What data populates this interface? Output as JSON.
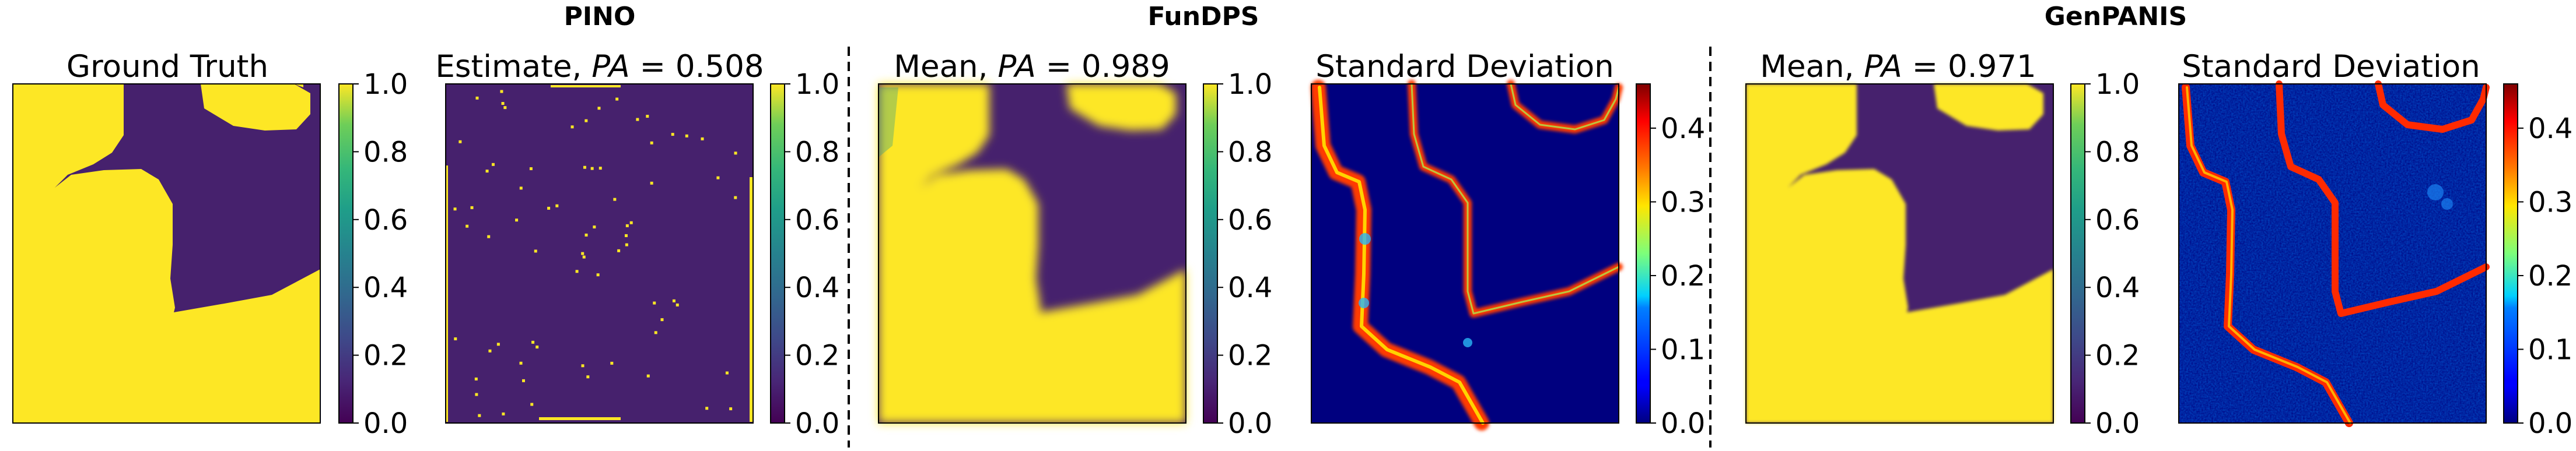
{
  "figure": {
    "group_titles": [
      "PINO",
      "FunDPS",
      "GenPANIS"
    ]
  },
  "colors": {
    "viridis_low": "#440154",
    "viridis_bg": "#46216d",
    "viridis_high": "#fde725",
    "jet_low": "#00007f",
    "jet_high": "#7f0000",
    "frame": "#000000",
    "divider": "#000000"
  },
  "chart_data": [
    {
      "type": "heatmap",
      "title": "Ground Truth",
      "colormap": "viridis",
      "colorbar": {
        "range": [
          0.0,
          1.0
        ],
        "ticks": [
          "0.0",
          "0.2",
          "0.4",
          "0.6",
          "0.8",
          "1.0"
        ]
      },
      "pattern": "binary field: yellow (1.0) channel snaking from top-center to bottom-left and spreading to bottom-right; purple (0.0) elsewhere"
    },
    {
      "type": "heatmap",
      "title": "Estimate, PA = 0.508",
      "title_main": "Estimate, ",
      "title_var": "PA",
      "title_value": " = 0.508",
      "pa": 0.508,
      "colormap": "viridis",
      "colorbar": {
        "range": [
          0.0,
          1.0
        ],
        "ticks": [
          "0.0",
          "0.2",
          "0.4",
          "0.6",
          "0.8",
          "1.0"
        ]
      },
      "pattern": "nearly uniform purple (~0.0) with sparse yellow speckles, yellow border pixels along edges"
    },
    {
      "type": "heatmap",
      "title": "Mean, PA = 0.989",
      "title_main": "Mean, ",
      "title_var": "PA",
      "title_value": " = 0.989",
      "pa": 0.989,
      "colormap": "viridis",
      "colorbar": {
        "range": [
          0.0,
          1.0
        ],
        "ticks": [
          "0.0",
          "0.2",
          "0.4",
          "0.6",
          "0.8",
          "1.0"
        ]
      },
      "pattern": "smooth reconstruction closely matching ground truth"
    },
    {
      "type": "heatmap",
      "title": "Standard Deviation",
      "colormap": "jet",
      "colorbar": {
        "range": [
          0.0,
          0.46
        ],
        "ticks": [
          "0.0",
          "0.1",
          "0.2",
          "0.3",
          "0.4"
        ]
      },
      "pattern": "dark blue background with red/yellow ridges along the interface boundaries"
    },
    {
      "type": "heatmap",
      "title": "Mean, PA = 0.971",
      "title_main": "Mean, ",
      "title_var": "PA",
      "title_value": " = 0.971",
      "pa": 0.971,
      "colormap": "viridis",
      "colorbar": {
        "range": [
          0.0,
          1.0
        ],
        "ticks": [
          "0.0",
          "0.2",
          "0.4",
          "0.6",
          "0.8",
          "1.0"
        ]
      },
      "pattern": "reconstruction closely matching ground truth with slight noise"
    },
    {
      "type": "heatmap",
      "title": "Standard Deviation",
      "colormap": "jet",
      "colorbar": {
        "range": [
          0.0,
          0.46
        ],
        "ticks": [
          "0.0",
          "0.1",
          "0.2",
          "0.3",
          "0.4"
        ]
      },
      "pattern": "noisy blue background with red/yellow ridges along the interface boundaries"
    }
  ]
}
